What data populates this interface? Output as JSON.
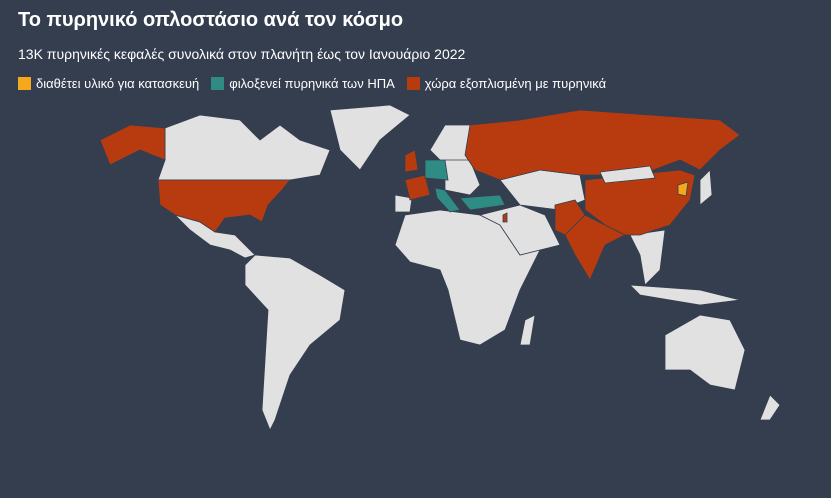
{
  "header": {
    "title": "Το πυρηνικό οπλοστάσιο ανά τον κόσμο",
    "subtitle": "13K πυρηνικές κεφαλές συνολικά στον πλανήτη έως τον Ιανουάριο 2022"
  },
  "legend": [
    {
      "label": "διαθέτει υλικό για κατασκευή",
      "color": "#f5a81c"
    },
    {
      "label": "φιλοξενεί πυρηνικά των ΗΠΑ",
      "color": "#2f8c84"
    },
    {
      "label": "χώρα εξοπλισμένη με πυρηνικά",
      "color": "#b83b0f"
    }
  ]
}
